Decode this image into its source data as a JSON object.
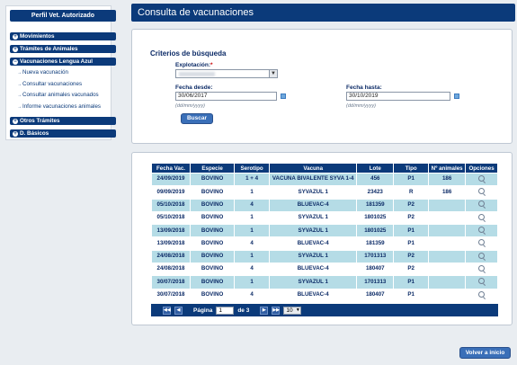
{
  "sidebar": {
    "title": "Perfil Vet. Autorizado",
    "items": [
      {
        "label": "Movimientos"
      },
      {
        "label": "Trámites de Animales"
      },
      {
        "label": "Vacunaciones Lengua Azul"
      },
      {
        "label": "Otros Trámites"
      },
      {
        "label": "D. Básicos"
      }
    ],
    "subitems": [
      {
        "label": "Nueva vacunación"
      },
      {
        "label": "Consultar vacunaciones"
      },
      {
        "label": "Consultar animales vacunados"
      },
      {
        "label": "Informe vacunaciones animales"
      }
    ]
  },
  "header": {
    "title": "Consulta de vacunaciones"
  },
  "search": {
    "title": "Criterios de búsqueda",
    "explotacion_label": "Explotación:",
    "required_mark": "*",
    "fecha_desde_label": "Fecha desde:",
    "fecha_desde_value": "30/06/2017",
    "fecha_hasta_label": "Fecha hasta:",
    "fecha_hasta_value": "30/10/2019",
    "date_hint": "(dd/mm/yyyy)",
    "buscar_label": "Buscar"
  },
  "results": {
    "columns": [
      "Fecha Vac.",
      "Especie",
      "Serotipo",
      "Vacuna",
      "Lote",
      "Tipo",
      "Nº animales",
      "Opciones"
    ],
    "rows": [
      {
        "fecha": "24/09/2019",
        "especie": "BOVINO",
        "serotipo": "1 + 4",
        "vacuna": "VACUNA BIVALENTE SYVA 1-4",
        "lote": "456",
        "tipo": "P1",
        "animales": "186"
      },
      {
        "fecha": "09/09/2019",
        "especie": "BOVINO",
        "serotipo": "1",
        "vacuna": "SYVAZUL 1",
        "lote": "23423",
        "tipo": "R",
        "animales": "186"
      },
      {
        "fecha": "05/10/2018",
        "especie": "BOVINO",
        "serotipo": "4",
        "vacuna": "BLUEVAC-4",
        "lote": "181359",
        "tipo": "P2",
        "animales": ""
      },
      {
        "fecha": "05/10/2018",
        "especie": "BOVINO",
        "serotipo": "1",
        "vacuna": "SYVAZUL 1",
        "lote": "1801025",
        "tipo": "P2",
        "animales": ""
      },
      {
        "fecha": "13/09/2018",
        "especie": "BOVINO",
        "serotipo": "1",
        "vacuna": "SYVAZUL 1",
        "lote": "1801025",
        "tipo": "P1",
        "animales": ""
      },
      {
        "fecha": "13/09/2018",
        "especie": "BOVINO",
        "serotipo": "4",
        "vacuna": "BLUEVAC-4",
        "lote": "181359",
        "tipo": "P1",
        "animales": ""
      },
      {
        "fecha": "24/08/2018",
        "especie": "BOVINO",
        "serotipo": "1",
        "vacuna": "SYVAZUL 1",
        "lote": "1701313",
        "tipo": "P2",
        "animales": ""
      },
      {
        "fecha": "24/08/2018",
        "especie": "BOVINO",
        "serotipo": "4",
        "vacuna": "BLUEVAC-4",
        "lote": "180407",
        "tipo": "P2",
        "animales": ""
      },
      {
        "fecha": "30/07/2018",
        "especie": "BOVINO",
        "serotipo": "1",
        "vacuna": "SYVAZUL 1",
        "lote": "1701313",
        "tipo": "P1",
        "animales": ""
      },
      {
        "fecha": "30/07/2018",
        "especie": "BOVINO",
        "serotipo": "4",
        "vacuna": "BLUEVAC-4",
        "lote": "180407",
        "tipo": "P1",
        "animales": ""
      }
    ],
    "pager": {
      "page_label": "Página",
      "page_value": "1",
      "of_label": "de 3",
      "page_size": "10"
    }
  },
  "footer": {
    "back_label": "Volver a inicio"
  },
  "colors": {
    "primary": "#0b3a7a",
    "row_alt": "#b5dce6",
    "button": "#3a6fb8"
  }
}
